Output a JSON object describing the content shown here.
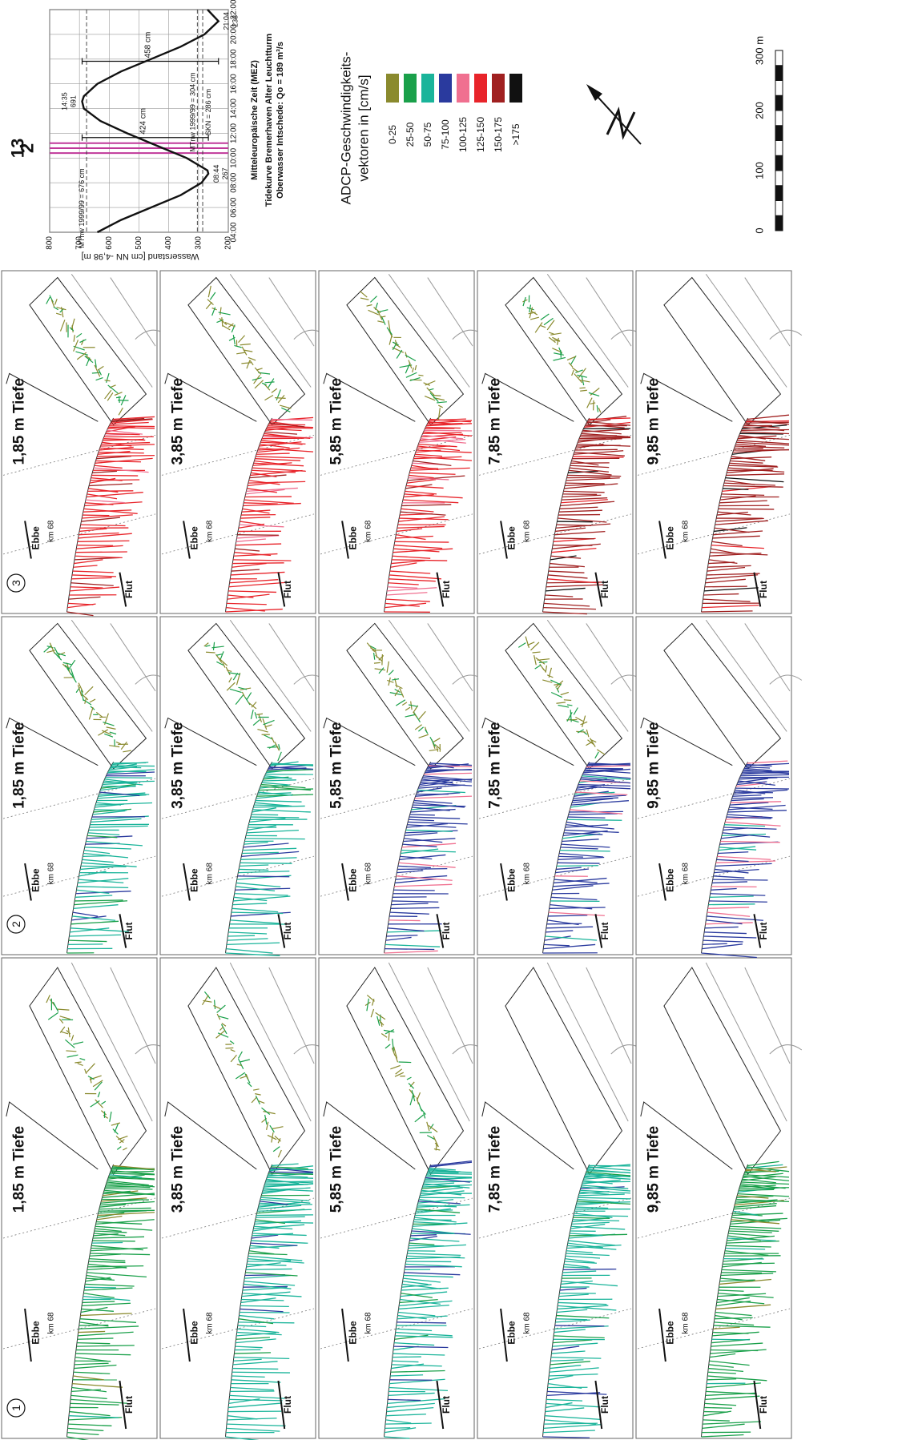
{
  "chart_data": {
    "type": "line",
    "x_label": "Mitteleuropäische Zeit (MEZ)",
    "y_label": "Wasserstand [cm NN -4,98 m]",
    "caption": [
      "Tidekurve Bremerhaven Alter Leuchtturm",
      "Oberwasser Intschede: Qo = 189 m³/s"
    ],
    "x": [
      4,
      5,
      6,
      7,
      8,
      8.73,
      9,
      10,
      11,
      12,
      13,
      14,
      14.58,
      15,
      16,
      17,
      18,
      19,
      20,
      21.07,
      22
    ],
    "values": [
      640,
      560,
      460,
      360,
      290,
      267,
      270,
      340,
      440,
      540,
      630,
      685,
      691,
      685,
      640,
      560,
      460,
      360,
      280,
      233,
      270
    ],
    "color": "#111111",
    "xlim": [
      4,
      22
    ],
    "xticks": [
      {
        "value": 4,
        "label": "04:00"
      },
      {
        "value": 6,
        "label": "06:00"
      },
      {
        "value": 8,
        "label": "08:00"
      },
      {
        "value": 10,
        "label": "10:00"
      },
      {
        "value": 12,
        "label": "12:00"
      },
      {
        "value": 14,
        "label": "14:00"
      },
      {
        "value": 16,
        "label": "16:00"
      },
      {
        "value": 18,
        "label": "18:00"
      },
      {
        "value": 20,
        "label": "20:00"
      },
      {
        "value": 22,
        "label": "22:00"
      }
    ],
    "ylim": [
      200,
      800
    ],
    "yticks": [
      200,
      300,
      400,
      500,
      600,
      700,
      800
    ],
    "grid": true,
    "reference_lines": [
      {
        "label": "MThw 1999/99 = 676 cm",
        "value": 676
      },
      {
        "label": "MTnw 1999/99 = 304 cm",
        "value": 304
      },
      {
        "label": "SKN = 286 cm",
        "value": 286
      }
    ],
    "extremes": [
      {
        "time": "08:44",
        "value": 267
      },
      {
        "time": "14:35",
        "value": 691
      },
      {
        "time": "21:04",
        "value": 233
      }
    ],
    "ranges": [
      "424 cm",
      "458 cm"
    ],
    "markers": [
      {
        "label": "1",
        "x": 10.4
      },
      {
        "label": "2",
        "x": 10.8
      },
      {
        "label": "3",
        "x": 11.2
      }
    ],
    "marker_color": "#c0389a"
  },
  "legend": {
    "title": [
      "ADCP-Geschwindigkeits-",
      "vektoren in [cm/s]"
    ],
    "items": [
      {
        "label": "0-25",
        "color": "#8a8a2e"
      },
      {
        "label": "25-50",
        "color": "#1aa04a"
      },
      {
        "label": "50-75",
        "color": "#1ab49a"
      },
      {
        "label": "75-100",
        "color": "#2a3a9e"
      },
      {
        "label": "100-125",
        "color": "#f07090"
      },
      {
        "label": "125-150",
        "color": "#e8242a"
      },
      {
        "label": "150-175",
        "color": "#a02020"
      },
      {
        "label": ">175",
        "color": "#111111"
      }
    ]
  },
  "scale_bar": {
    "labels": [
      "0",
      "100",
      "200",
      "300 m"
    ]
  },
  "panels": {
    "groups": [
      "1",
      "2",
      "3"
    ],
    "depths": [
      "1,85 m Tiefe",
      "3,85 m Tiefe",
      "5,85 m Tiefe",
      "7,85 m Tiefe",
      "9,85 m Tiefe"
    ],
    "labels": {
      "ebbe": "Ebbe",
      "flut": "Flut",
      "km": "km 68"
    }
  }
}
